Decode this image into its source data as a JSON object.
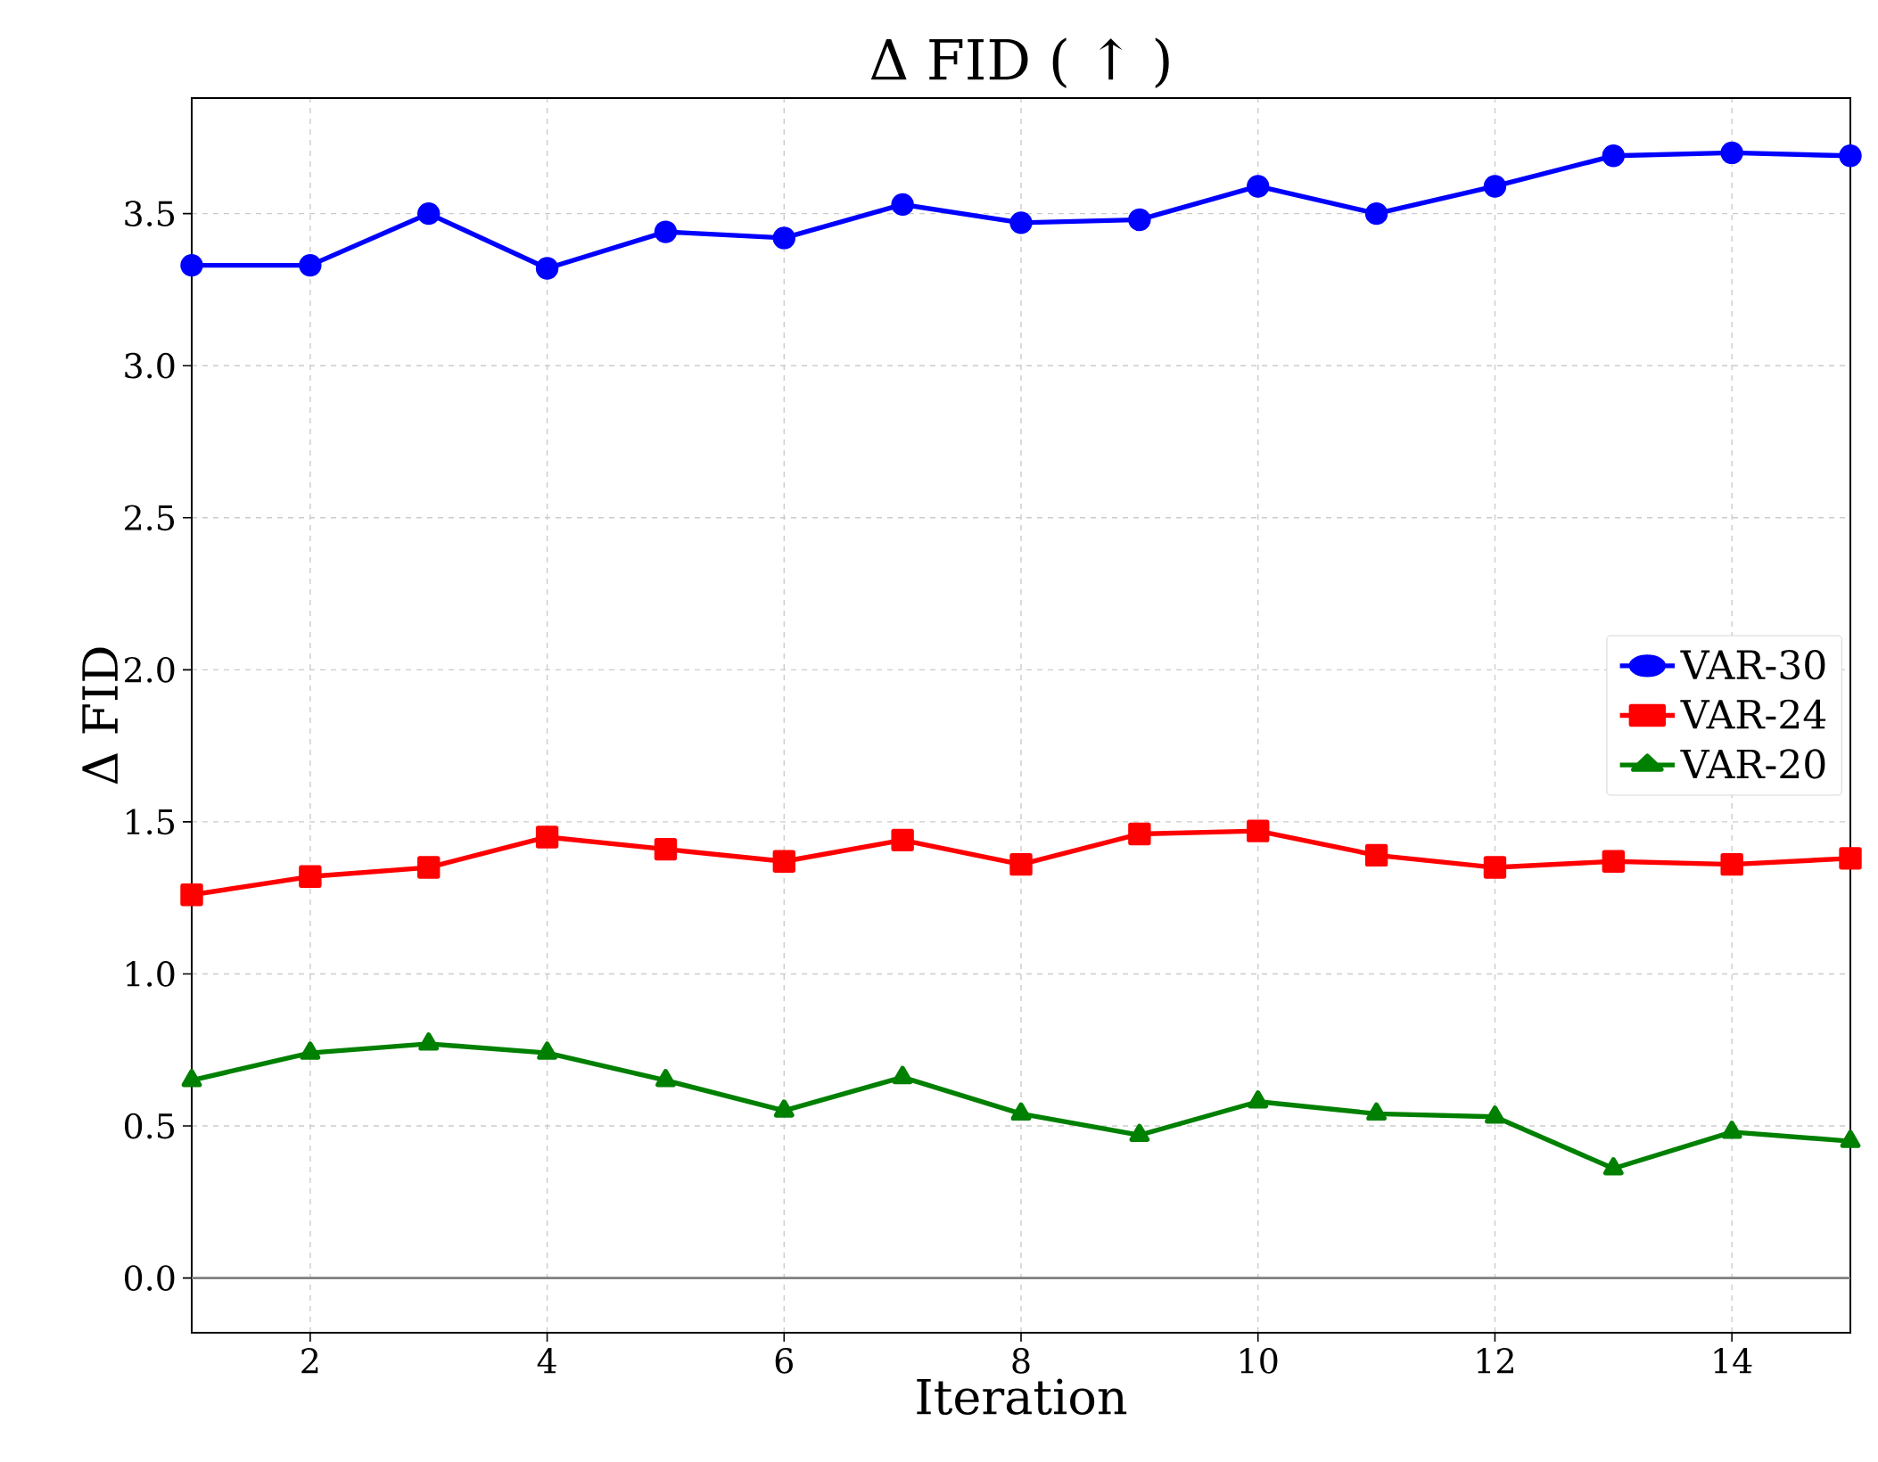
{
  "chart_data": {
    "type": "line",
    "title": "Δ FID ( ↑ )",
    "xlabel": "Iteration",
    "ylabel": "Δ FID",
    "x": [
      1,
      2,
      3,
      4,
      5,
      6,
      7,
      8,
      9,
      10,
      11,
      12,
      13,
      14,
      15
    ],
    "series": [
      {
        "name": "VAR-30",
        "color": "#0000ff",
        "marker": "circle",
        "values": [
          3.33,
          3.33,
          3.5,
          3.32,
          3.44,
          3.42,
          3.53,
          3.47,
          3.48,
          3.59,
          3.5,
          3.59,
          3.69,
          3.7,
          3.69
        ]
      },
      {
        "name": "VAR-24",
        "color": "#ff0000",
        "marker": "square",
        "values": [
          1.26,
          1.32,
          1.35,
          1.45,
          1.41,
          1.37,
          1.44,
          1.36,
          1.46,
          1.47,
          1.39,
          1.35,
          1.37,
          1.36,
          1.38
        ]
      },
      {
        "name": "VAR-20",
        "color": "#008000",
        "marker": "triangle",
        "values": [
          0.65,
          0.74,
          0.77,
          0.74,
          0.65,
          0.55,
          0.66,
          0.54,
          0.47,
          0.58,
          0.54,
          0.53,
          0.36,
          0.48,
          0.45
        ]
      }
    ],
    "xlim": [
      1,
      15
    ],
    "ylim": [
      -0.18,
      3.88
    ],
    "xticks": [
      2,
      4,
      6,
      8,
      10,
      12,
      14
    ],
    "yticks": [
      {
        "value": 0,
        "label": "0.0"
      },
      {
        "value": 0.5,
        "label": "0.5"
      },
      {
        "value": 1,
        "label": "1.0"
      },
      {
        "value": 1.5,
        "label": "1.5"
      },
      {
        "value": 2,
        "label": "2.0"
      },
      {
        "value": 2.5,
        "label": "2.5"
      },
      {
        "value": 3,
        "label": "3.0"
      },
      {
        "value": 3.5,
        "label": "3.5"
      }
    ],
    "ref_lines": [
      {
        "axis": "y",
        "value": 0,
        "color": "#808080"
      }
    ],
    "grid": true,
    "legend": "right",
    "line_style": "solid"
  }
}
